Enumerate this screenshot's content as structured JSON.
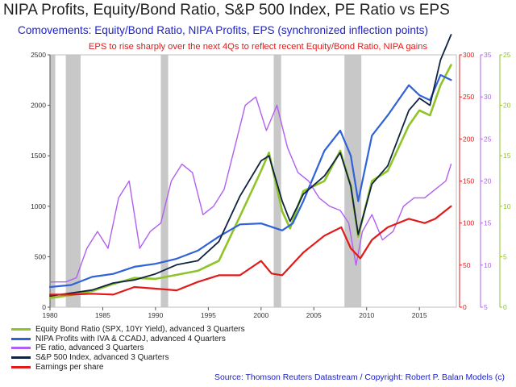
{
  "title": "NIPA Profits, Equity/Bond Ratio, S&P 500 Index, PE Ratio vs EPS",
  "subtitle": "Comovements: Equity/Bond Ratio, NIPA Profits, EPS (synchronized inflection points)",
  "annotation": "EPS to rise sharply over the next 4Qs to reflect recent Equity/Bond Ratio, NIPA gains",
  "source": "Source: Thomson Reuters Datastream / Copyright: Robert P. Balan Models (c)",
  "chart_data": {
    "type": "line",
    "grid": false,
    "x_axis": {
      "range": [
        1980,
        2018.5
      ],
      "ticks": [
        1980,
        1985,
        1990,
        1995,
        2000,
        2005,
        2010,
        2015
      ]
    },
    "axes": {
      "left": {
        "range": [
          0,
          2500
        ],
        "ticks": [
          0,
          500,
          1000,
          1500,
          2000,
          2500
        ],
        "color": "#333333"
      },
      "right_red": {
        "range": [
          0,
          300
        ],
        "ticks": [
          0,
          50,
          100,
          150,
          200,
          250,
          300
        ],
        "color": "#e01a1a"
      },
      "right_purple": {
        "range": [
          5,
          35
        ],
        "ticks": [
          5,
          10,
          15,
          20,
          25,
          30,
          35
        ],
        "color": "#b060f0"
      },
      "right_green": {
        "range": [
          0,
          25
        ],
        "ticks": [
          0,
          5,
          10,
          15,
          20,
          25
        ],
        "color": "#8fc428"
      }
    },
    "recessions": [
      [
        1980.0,
        1980.5
      ],
      [
        1981.5,
        1982.9
      ],
      [
        1990.5,
        1991.2
      ],
      [
        2001.2,
        2001.9
      ],
      [
        2007.9,
        2009.5
      ]
    ],
    "series": [
      {
        "name": "Equity Bond Ratio (SPX, 10Yr Yield), advanced 3 Quarters",
        "color": "#8fc428",
        "axis": "right_green",
        "width": 2.6,
        "x": [
          1980,
          1982,
          1984,
          1986,
          1988,
          1990,
          1992,
          1994,
          1996,
          1998,
          2000,
          2000.75,
          2002,
          2002.75,
          2004,
          2006,
          2007.5,
          2008.5,
          2009.2,
          2010.5,
          2012,
          2014,
          2015,
          2016,
          2017,
          2018
        ],
        "y": [
          0.9,
          1.2,
          1.6,
          2.3,
          2.9,
          2.8,
          3.2,
          3.6,
          4.6,
          9.0,
          13.5,
          15.3,
          9.5,
          7.8,
          11.5,
          12.5,
          15.5,
          12.0,
          7.0,
          12.5,
          13.5,
          18.0,
          19.5,
          19.0,
          22.0,
          24.0
        ]
      },
      {
        "name": "NIPA Profits with IVA & CCADJ, advanced 4 Quarters",
        "color": "#2f62d8",
        "axis": "left",
        "width": 2.2,
        "x": [
          1980,
          1982,
          1984,
          1986,
          1988,
          1990,
          1992,
          1994,
          1996,
          1998,
          2000,
          2002,
          2003,
          2004,
          2006,
          2007.5,
          2008.5,
          2009.2,
          2010.5,
          2012,
          2014,
          2015,
          2016,
          2017,
          2018
        ],
        "y": [
          200,
          220,
          300,
          330,
          400,
          430,
          480,
          560,
          700,
          820,
          830,
          760,
          830,
          1050,
          1550,
          1750,
          1500,
          1050,
          1700,
          1900,
          2200,
          2100,
          2050,
          2300,
          2250
        ]
      },
      {
        "name": "PE ratio, advanced 3 Quarters",
        "color": "#b060f0",
        "axis": "right_purple",
        "width": 1.4,
        "x": [
          1980,
          1981.5,
          1982.5,
          1983.5,
          1984.5,
          1985.5,
          1986.5,
          1987.5,
          1988.5,
          1989.5,
          1990.5,
          1991.5,
          1992.5,
          1993.5,
          1994.5,
          1995.5,
          1996.5,
          1997.5,
          1998.5,
          1999.5,
          2000.5,
          2001.5,
          2002.5,
          2003.5,
          2004.5,
          2005.5,
          2006.5,
          2007.5,
          2008.3,
          2009,
          2009.6,
          2010.5,
          2011.5,
          2012.5,
          2013.5,
          2014.5,
          2015.5,
          2016.5,
          2017.5,
          2018
        ],
        "y": [
          8,
          8,
          8.5,
          12,
          14,
          12,
          18,
          20,
          12,
          14,
          15,
          20,
          22,
          21,
          16,
          17,
          19,
          24,
          29,
          30,
          26,
          29,
          24,
          21,
          20,
          18,
          17,
          16.5,
          15,
          10,
          14,
          16,
          13,
          14,
          17,
          18,
          18,
          19,
          20,
          22
        ]
      },
      {
        "name": "S&P 500 Index, advanced 3 Quarters",
        "color": "#0f2340",
        "axis": "left",
        "width": 1.8,
        "x": [
          1980,
          1982,
          1984,
          1986,
          1988,
          1990,
          1992,
          1994,
          1996,
          1998,
          2000,
          2000.75,
          2002,
          2002.75,
          2004,
          2006,
          2007.5,
          2008.5,
          2009.2,
          2010.5,
          2012,
          2014,
          2015,
          2016,
          2017,
          2018
        ],
        "y": [
          110,
          140,
          170,
          240,
          270,
          330,
          420,
          460,
          650,
          1100,
          1450,
          1500,
          1050,
          850,
          1120,
          1300,
          1530,
          1200,
          720,
          1220,
          1400,
          1950,
          2070,
          2000,
          2450,
          2700
        ]
      },
      {
        "name": "Earnings per share",
        "color": "#e01a1a",
        "axis": "right_red",
        "width": 2.2,
        "x": [
          1980,
          1982,
          1984,
          1986,
          1988,
          1990,
          1992,
          1994,
          1996,
          1998,
          2000,
          2001,
          2002,
          2004,
          2006,
          2007.6,
          2008.5,
          2009.4,
          2010.5,
          2012,
          2014,
          2015.5,
          2016.5,
          2017.5,
          2018
        ],
        "y": [
          15,
          15,
          16,
          15,
          24,
          22,
          20,
          30,
          38,
          38,
          55,
          40,
          38,
          65,
          85,
          95,
          70,
          58,
          80,
          95,
          105,
          100,
          105,
          115,
          120
        ]
      }
    ]
  }
}
